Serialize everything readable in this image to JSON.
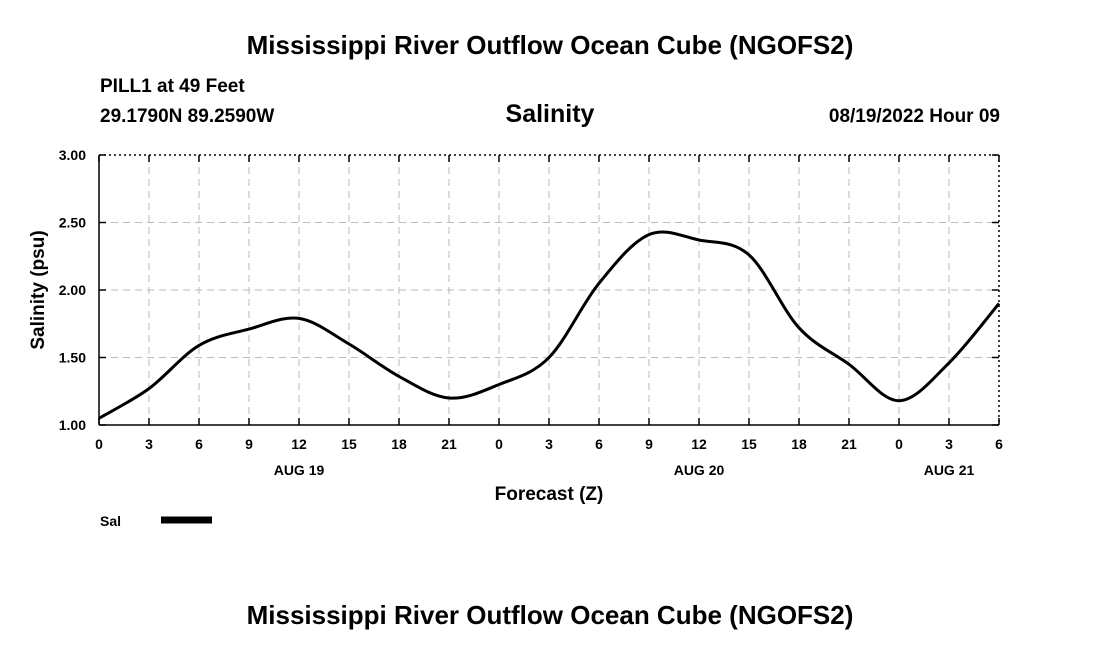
{
  "header": {
    "title_top": "Mississippi River Outflow Ocean Cube (NGOFS2)",
    "title_bottom": "Mississippi River Outflow Ocean Cube (NGOFS2)",
    "station": "PILL1 at 49 Feet",
    "coords": "29.1790N  89.2590W",
    "date": "08/19/2022 Hour 09"
  },
  "chart_data": {
    "type": "line",
    "title": "Salinity",
    "xlabel": "Forecast (Z)",
    "ylabel": "Salinity (psu)",
    "ylim": [
      1.0,
      3.0
    ],
    "xlim": [
      0,
      54
    ],
    "y_ticks": [
      "1.00",
      "1.50",
      "2.00",
      "2.50",
      "3.00"
    ],
    "x_ticks": [
      "0",
      "3",
      "6",
      "9",
      "12",
      "15",
      "18",
      "21",
      "0",
      "3",
      "6",
      "9",
      "12",
      "15",
      "18",
      "21",
      "0",
      "3",
      "6"
    ],
    "date_labels": [
      {
        "text": "AUG 19",
        "hour": 12
      },
      {
        "text": "AUG 20",
        "hour": 36
      },
      {
        "text": "AUG 21",
        "hour": 51
      }
    ],
    "grid": true,
    "legend": {
      "label": "Sal",
      "position": "bottom-left"
    },
    "series": [
      {
        "name": "Sal",
        "x": [
          0,
          3,
          6,
          9,
          12,
          15,
          18,
          21,
          24,
          27,
          30,
          33,
          36,
          39,
          42,
          45,
          48,
          51,
          54
        ],
        "values": [
          1.05,
          1.27,
          1.59,
          1.71,
          1.79,
          1.6,
          1.36,
          1.2,
          1.3,
          1.5,
          2.05,
          2.41,
          2.37,
          2.26,
          1.72,
          1.45,
          1.18,
          1.46,
          1.9
        ]
      }
    ]
  }
}
